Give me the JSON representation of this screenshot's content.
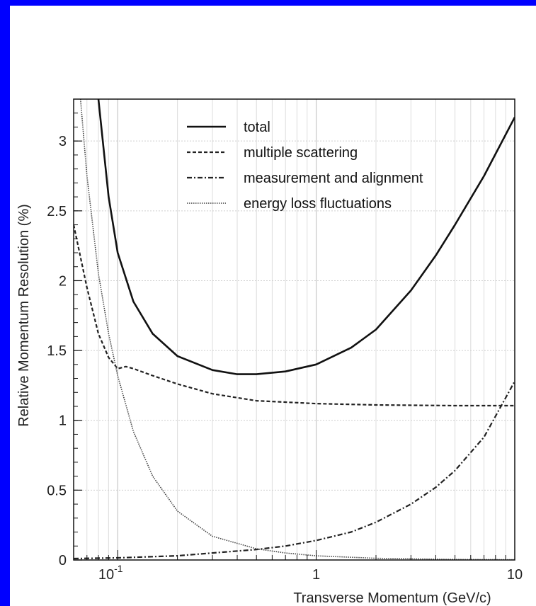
{
  "chart_data": {
    "type": "line",
    "xlabel": "Transverse Momentum (GeV/c)",
    "ylabel": "Relative Momentum Resolution (%)",
    "x_scale": "log",
    "xlim": [
      0.06,
      10
    ],
    "ylim": [
      0,
      3.3
    ],
    "x_ticks": [
      {
        "value": 0.1,
        "base": "10",
        "exp": "-1"
      },
      {
        "value": 1,
        "base": "1",
        "exp": ""
      },
      {
        "value": 10,
        "base": "10",
        "exp": ""
      }
    ],
    "y_ticks": [
      {
        "value": 0,
        "label": "0"
      },
      {
        "value": 0.5,
        "label": "0.5"
      },
      {
        "value": 1,
        "label": "1"
      },
      {
        "value": 1.5,
        "label": "1.5"
      },
      {
        "value": 2,
        "label": "2"
      },
      {
        "value": 2.5,
        "label": "2.5"
      },
      {
        "value": 3,
        "label": "3"
      }
    ],
    "grid": true,
    "legend_position": "top-right",
    "series": [
      {
        "name": "total",
        "style": "solid",
        "x": [
          0.08,
          0.09,
          0.1,
          0.12,
          0.15,
          0.2,
          0.3,
          0.4,
          0.5,
          0.7,
          1,
          1.5,
          2,
          3,
          4,
          5,
          7,
          10
        ],
        "y": [
          3.3,
          2.6,
          2.2,
          1.85,
          1.62,
          1.46,
          1.36,
          1.33,
          1.33,
          1.35,
          1.4,
          1.52,
          1.65,
          1.93,
          2.18,
          2.4,
          2.75,
          3.17
        ]
      },
      {
        "name": "multiple scattering",
        "style": "dashed",
        "x": [
          0.06,
          0.07,
          0.08,
          0.09,
          0.1,
          0.11,
          0.12,
          0.15,
          0.2,
          0.3,
          0.5,
          1,
          2,
          5,
          10
        ],
        "y": [
          2.4,
          1.95,
          1.62,
          1.45,
          1.37,
          1.385,
          1.37,
          1.32,
          1.26,
          1.19,
          1.14,
          1.12,
          1.11,
          1.105,
          1.105
        ]
      },
      {
        "name": "measurement and alignment",
        "style": "dashdot",
        "x": [
          0.06,
          0.1,
          0.2,
          0.3,
          0.5,
          0.7,
          1,
          1.5,
          2,
          3,
          4,
          5,
          7,
          10
        ],
        "y": [
          0.01,
          0.015,
          0.03,
          0.05,
          0.075,
          0.1,
          0.14,
          0.2,
          0.27,
          0.4,
          0.52,
          0.64,
          0.88,
          1.28
        ]
      },
      {
        "name": "energy loss fluctuations",
        "style": "dotted",
        "x": [
          0.065,
          0.07,
          0.08,
          0.09,
          0.1,
          0.12,
          0.15,
          0.2,
          0.3,
          0.5,
          0.7,
          1,
          2,
          5,
          10
        ],
        "y": [
          3.3,
          2.75,
          2.05,
          1.62,
          1.32,
          0.92,
          0.6,
          0.35,
          0.17,
          0.08,
          0.05,
          0.03,
          0.012,
          0.004,
          0.002
        ]
      }
    ]
  }
}
